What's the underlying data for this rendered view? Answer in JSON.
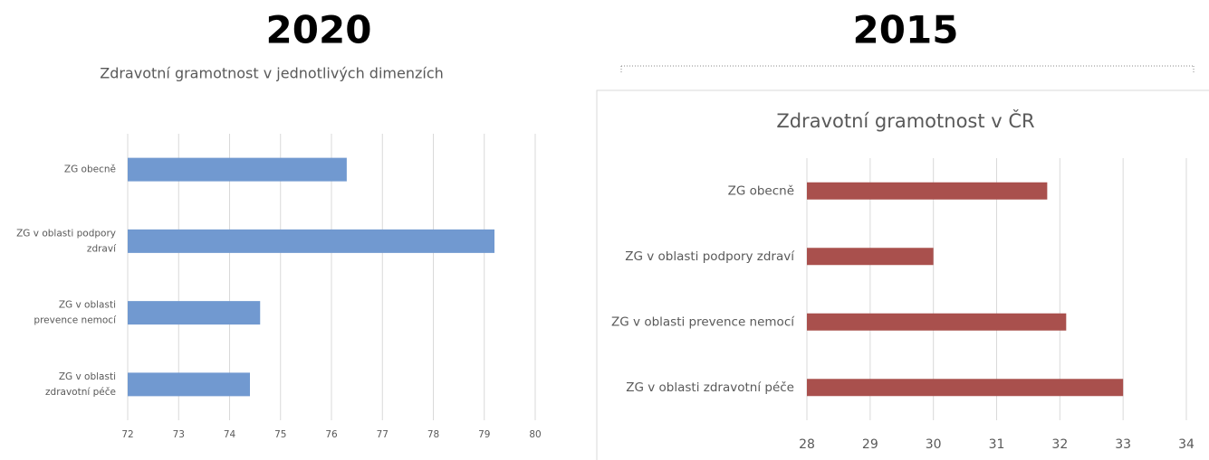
{
  "headings": [
    "2020",
    "2015"
  ],
  "chart_data": [
    {
      "type": "bar",
      "orientation": "horizontal",
      "title": "Zdravotní gramotnost v jednotlivých dimenzích",
      "categories": [
        "ZG obecně",
        "ZG v oblasti podpory zdraví",
        "ZG v oblasti prevence nemocí",
        "ZG v oblasti zdravotní péče"
      ],
      "values": [
        76.3,
        79.2,
        74.6,
        74.4
      ],
      "color": "#7199d0",
      "xlim": [
        72,
        80
      ],
      "xticks": [
        72,
        73,
        74,
        75,
        76,
        77,
        78,
        79,
        80
      ],
      "grid": true
    },
    {
      "type": "bar",
      "orientation": "horizontal",
      "title": "Zdravotní gramotnost v ČR",
      "categories": [
        "ZG obecně",
        "ZG v oblasti podpory zdraví",
        "ZG v oblasti prevence nemocí",
        "ZG v oblasti zdravotní péče"
      ],
      "values": [
        31.8,
        30.0,
        32.1,
        33.0
      ],
      "color": "#a9504d",
      "xlim": [
        28,
        34
      ],
      "xticks": [
        28,
        29,
        30,
        31,
        32,
        33,
        34
      ],
      "grid": true
    }
  ]
}
